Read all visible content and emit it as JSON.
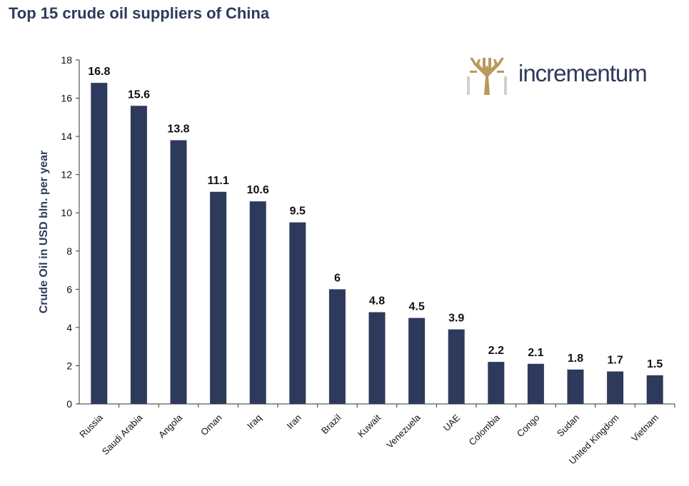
{
  "chart_data": {
    "type": "bar",
    "title": "Top 15 crude oil suppliers of China",
    "xlabel": "",
    "ylabel": "Crude Oil in USD bln. per year",
    "categories": [
      "Russia",
      "Saudi Arabia",
      "Angola",
      "Oman",
      "Iraq",
      "Iran",
      "Brazil",
      "Kuwait",
      "Venezuela",
      "UAE",
      "Colombia",
      "Congo",
      "Sudan",
      "United Kingdom",
      "Vietnam"
    ],
    "values": [
      16.8,
      15.6,
      13.8,
      11.1,
      10.6,
      9.5,
      6,
      4.8,
      4.5,
      3.9,
      2.2,
      2.1,
      1.8,
      1.7,
      1.5
    ],
    "ylim": [
      0,
      18
    ],
    "yticks": [
      0,
      2,
      4,
      6,
      8,
      10,
      12,
      14,
      16,
      18
    ],
    "grid": false,
    "data_labels": true,
    "bar_color": "#2e3a5c"
  },
  "logo": {
    "text": "incrementum",
    "icon": "tree-logo-icon",
    "icon_color": "#b8995a",
    "text_color": "#2e3a5c"
  }
}
